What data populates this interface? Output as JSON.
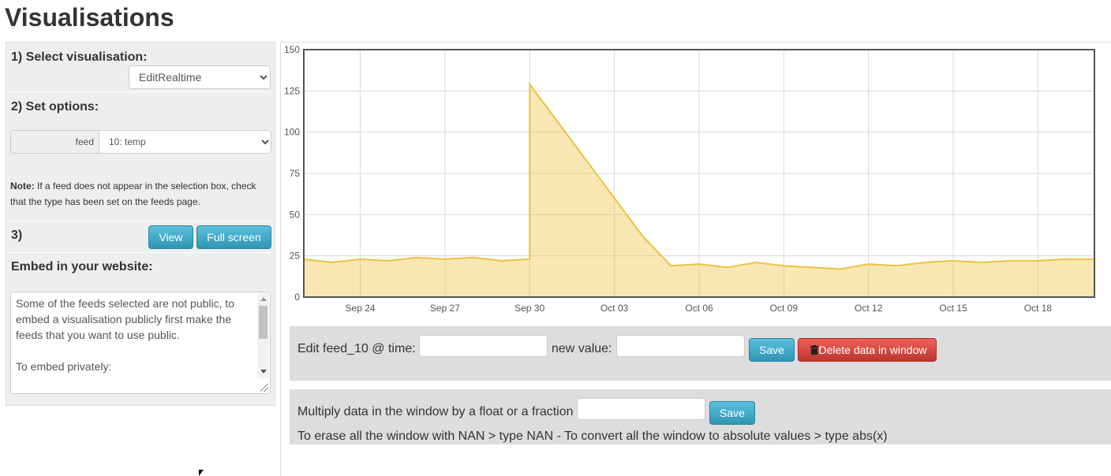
{
  "page": {
    "title": "Visualisations"
  },
  "left_panel": {
    "step1": {
      "heading": "1) Select visualisation:",
      "select_value": "EditRealtime"
    },
    "step2": {
      "heading": "2) Set options:",
      "feed_label": "feed",
      "feed_value": "10: temp",
      "note_bold": "Note:",
      "note_text": " If a feed does not appear in the selection box, check that the type has been set on the feeds page."
    },
    "step3": {
      "heading": "3)",
      "view_button": "View",
      "fullscreen_button": "Full screen"
    },
    "embed": {
      "heading": "Embed in your website:",
      "text1": "Some of the feeds selected are not public, to embed a visualisation publicly first make the feeds that you want to use public.",
      "text2": "To embed privately:"
    }
  },
  "edit_bar": {
    "edit_label": "Edit feed_10 @ time:",
    "time_value": "",
    "new_value_label": "new value:",
    "new_value": "",
    "save_button": "Save",
    "delete_button": "Delete data in window",
    "delete_icon": "trash-icon"
  },
  "multiply_bar": {
    "label": "Multiply data in the window by a float or a fraction",
    "value": "",
    "save_button": "Save",
    "help_text": "To erase all the window with NAN > type NAN - To convert all the window to absolute values > type abs(x)"
  },
  "chart_data": {
    "type": "area",
    "series": [
      {
        "color": "#edc240",
        "x": [
          "Sep 22",
          "Sep 23",
          "Sep 24",
          "Sep 25",
          "Sep 26",
          "Sep 27",
          "Sep 28",
          "Sep 29",
          "Sep 30",
          "Sep 30",
          "Oct 01",
          "Oct 02",
          "Oct 03",
          "Oct 04",
          "Oct 05",
          "Oct 06",
          "Oct 07",
          "Oct 08",
          "Oct 09",
          "Oct 10",
          "Oct 11",
          "Oct 12",
          "Oct 13",
          "Oct 14",
          "Oct 15",
          "Oct 16",
          "Oct 17",
          "Oct 18",
          "Oct 19",
          "Oct 20"
        ],
        "y": [
          23,
          21,
          23,
          22,
          24,
          23,
          24,
          22,
          23,
          129,
          106,
          83,
          60,
          37,
          19,
          20,
          18,
          21,
          19,
          18,
          17,
          20,
          19,
          21,
          22,
          21,
          22,
          22,
          23,
          23
        ]
      }
    ],
    "xlabels": [
      "Sep 24",
      "Sep 27",
      "Sep 30",
      "Oct 03",
      "Oct 06",
      "Oct 09",
      "Oct 12",
      "Oct 15",
      "Oct 18"
    ],
    "yticks": [
      0,
      25,
      50,
      75,
      100,
      125,
      150
    ],
    "ylim": [
      0,
      150
    ],
    "grid": true
  }
}
